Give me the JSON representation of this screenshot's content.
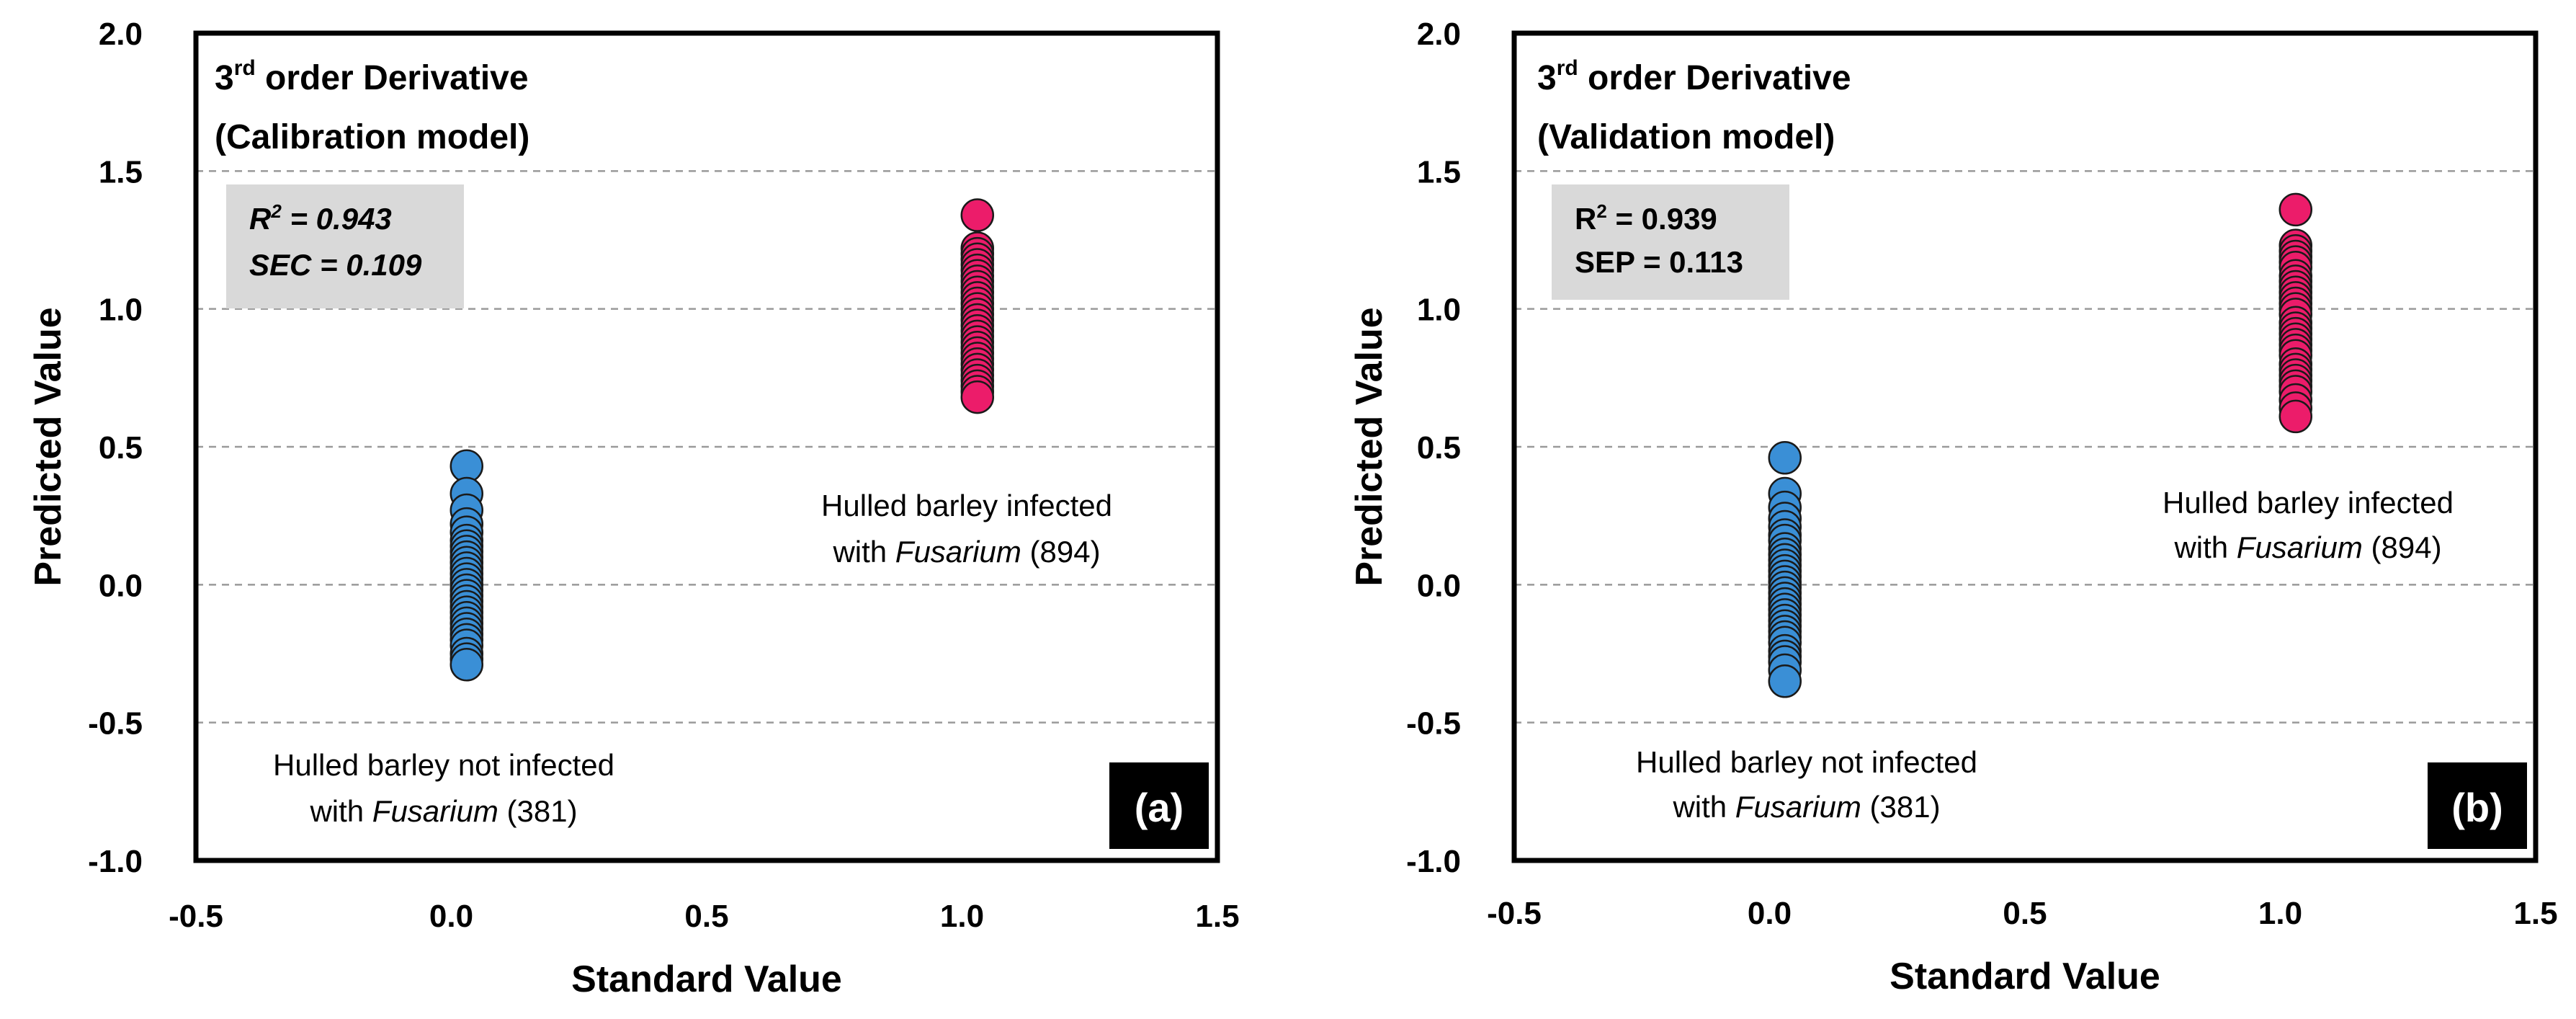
{
  "chart_data": [
    {
      "type": "scatter",
      "title": "3rd order Derivative",
      "title_order": "3",
      "title_sup": "rd",
      "title_rest": " order Derivative",
      "subtitle": "(Calibration model)",
      "xlabel": "Standard Value",
      "ylabel": "Predicted Value",
      "xlim": [
        -0.5,
        1.5
      ],
      "ylim": [
        -1.0,
        2.0
      ],
      "xticks": [
        "-0.5",
        "0.0",
        "0.5",
        "1.0",
        "1.5"
      ],
      "yticks": [
        "-1.0",
        "-0.5",
        "0.0",
        "0.5",
        "1.0",
        "1.5",
        "2.0"
      ],
      "grid": "horizontal dashed",
      "panel_label": "(a)",
      "stats": {
        "r2_label": "R",
        "r2_sup": "2",
        "r2_value": " =  0.943",
        "error_line": "SEC = 0.109"
      },
      "colors": {
        "not_infected": "#3a8fd6",
        "infected": "#ec1c6a"
      },
      "series": [
        {
          "name": "Hulled barley not infected with Fusarium (381)",
          "label_line1": "Hulled barley not infected",
          "label_prefix": "with ",
          "label_italic": "Fusarium",
          "label_suffix": " (381)",
          "x": 0.03,
          "y": [
            0.43,
            0.33,
            0.27,
            0.22,
            0.19,
            0.16,
            0.14,
            0.12,
            0.1,
            0.08,
            0.06,
            0.04,
            0.02,
            0.0,
            -0.02,
            -0.04,
            -0.06,
            -0.08,
            -0.1,
            -0.12,
            -0.14,
            -0.16,
            -0.18,
            -0.2,
            -0.22,
            -0.25,
            -0.27,
            -0.29
          ]
        },
        {
          "name": "Hulled barley infected with Fusarium (894)",
          "label_line1": "Hulled barley infected",
          "label_prefix": "with ",
          "label_italic": "Fusarium",
          "label_suffix": " (894)",
          "x": 1.03,
          "y": [
            1.34,
            1.22,
            1.2,
            1.18,
            1.16,
            1.14,
            1.12,
            1.1,
            1.08,
            1.06,
            1.04,
            1.02,
            1.0,
            0.98,
            0.96,
            0.94,
            0.92,
            0.9,
            0.88,
            0.86,
            0.84,
            0.82,
            0.8,
            0.78,
            0.76,
            0.74,
            0.72,
            0.7,
            0.68
          ]
        }
      ]
    },
    {
      "type": "scatter",
      "title": "3rd order Derivative",
      "title_order": "3",
      "title_sup": "rd",
      "title_rest": " order Derivative",
      "subtitle": "(Validation model)",
      "xlabel": "Standard Value",
      "ylabel": "Predicted Value",
      "xlim": [
        -0.5,
        1.5
      ],
      "ylim": [
        -1.0,
        2.0
      ],
      "xticks": [
        "-0.5",
        "0.0",
        "0.5",
        "1.0",
        "1.5"
      ],
      "yticks": [
        "-1.0",
        "-0.5",
        "0.0",
        "0.5",
        "1.0",
        "1.5",
        "2.0"
      ],
      "grid": "horizontal dashed",
      "panel_label": "(b)",
      "stats": {
        "r2_label": "R",
        "r2_sup": "2",
        "r2_value": " =  0.939",
        "error_line": "SEP = 0.113"
      },
      "colors": {
        "not_infected": "#3a8fd6",
        "infected": "#ec1c6a"
      },
      "series": [
        {
          "name": "Hulled barley not infected with Fusarium (381)",
          "label_line1": "Hulled barley not infected",
          "label_prefix": "with ",
          "label_italic": "Fusarium",
          "label_suffix": " (381)",
          "x": 0.03,
          "y": [
            0.46,
            0.33,
            0.28,
            0.24,
            0.21,
            0.18,
            0.16,
            0.13,
            0.11,
            0.09,
            0.07,
            0.05,
            0.03,
            0.01,
            -0.01,
            -0.03,
            -0.05,
            -0.07,
            -0.09,
            -0.11,
            -0.13,
            -0.15,
            -0.17,
            -0.19,
            -0.21,
            -0.24,
            -0.26,
            -0.28,
            -0.31,
            -0.35
          ]
        },
        {
          "name": "Hulled barley infected with Fusarium (894)",
          "label_line1": "Hulled barley infected",
          "label_prefix": "with ",
          "label_italic": "Fusarium",
          "label_suffix": " (894)",
          "x": 1.03,
          "y": [
            1.36,
            1.23,
            1.21,
            1.19,
            1.17,
            1.15,
            1.12,
            1.1,
            1.08,
            1.06,
            1.04,
            1.02,
            1.0,
            0.98,
            0.95,
            0.93,
            0.91,
            0.89,
            0.87,
            0.85,
            0.83,
            0.8,
            0.78,
            0.76,
            0.74,
            0.72,
            0.7,
            0.67,
            0.64,
            0.61
          ]
        }
      ]
    }
  ]
}
